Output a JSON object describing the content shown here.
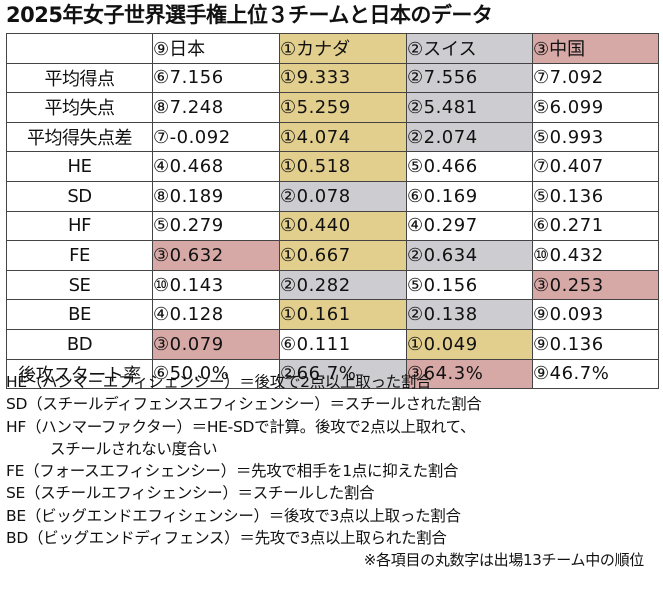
{
  "title": "2025年女子世界選手権上位３チームと日本のデータ",
  "colors": {
    "gold": "#e2cf8e",
    "silver": "#cdcdd1",
    "bronze": "#d7a9a6",
    "white": "#ffffff"
  },
  "columns": [
    "⑨日本",
    "①カナダ",
    "②スイス",
    "③中国"
  ],
  "header_colors": [
    "white",
    "gold",
    "silver",
    "bronze"
  ],
  "rows": [
    {
      "label": "平均得点",
      "cells": [
        {
          "text": "⑥7.156",
          "color": "white"
        },
        {
          "text": "①9.333",
          "color": "gold"
        },
        {
          "text": "②7.556",
          "color": "silver"
        },
        {
          "text": "⑦7.092",
          "color": "white"
        }
      ]
    },
    {
      "label": "平均失点",
      "cells": [
        {
          "text": "⑧7.248",
          "color": "white"
        },
        {
          "text": "①5.259",
          "color": "gold"
        },
        {
          "text": "②5.481",
          "color": "silver"
        },
        {
          "text": "⑤6.099",
          "color": "white"
        }
      ]
    },
    {
      "label": "平均得失点差",
      "cells": [
        {
          "text": "⑦-0.092",
          "color": "white"
        },
        {
          "text": "①4.074",
          "color": "gold"
        },
        {
          "text": "②2.074",
          "color": "silver"
        },
        {
          "text": "⑤0.993",
          "color": "white"
        }
      ]
    },
    {
      "label": "HE",
      "cells": [
        {
          "text": "④0.468",
          "color": "white"
        },
        {
          "text": "①0.518",
          "color": "gold"
        },
        {
          "text": "⑤0.466",
          "color": "white"
        },
        {
          "text": "⑦0.407",
          "color": "white"
        }
      ]
    },
    {
      "label": "SD",
      "cells": [
        {
          "text": "⑧0.189",
          "color": "white"
        },
        {
          "text": "②0.078",
          "color": "silver"
        },
        {
          "text": "⑥0.169",
          "color": "white"
        },
        {
          "text": "⑤0.136",
          "color": "white"
        }
      ]
    },
    {
      "label": "HF",
      "cells": [
        {
          "text": "⑤0.279",
          "color": "white"
        },
        {
          "text": "①0.440",
          "color": "gold"
        },
        {
          "text": "④0.297",
          "color": "white"
        },
        {
          "text": "⑥0.271",
          "color": "white"
        }
      ]
    },
    {
      "label": "FE",
      "cells": [
        {
          "text": "③0.632",
          "color": "bronze"
        },
        {
          "text": "①0.667",
          "color": "gold"
        },
        {
          "text": "②0.634",
          "color": "silver"
        },
        {
          "text": "⑩0.432",
          "color": "white"
        }
      ]
    },
    {
      "label": "SE",
      "cells": [
        {
          "text": "⑩0.143",
          "color": "white"
        },
        {
          "text": "②0.282",
          "color": "silver"
        },
        {
          "text": "⑤0.156",
          "color": "white"
        },
        {
          "text": "③0.253",
          "color": "bronze"
        }
      ]
    },
    {
      "label": "BE",
      "cells": [
        {
          "text": "④0.128",
          "color": "white"
        },
        {
          "text": "①0.161",
          "color": "gold"
        },
        {
          "text": "②0.138",
          "color": "silver"
        },
        {
          "text": "⑨0.093",
          "color": "white"
        }
      ]
    },
    {
      "label": "BD",
      "cells": [
        {
          "text": "③0.079",
          "color": "bronze"
        },
        {
          "text": "⑥0.111",
          "color": "white"
        },
        {
          "text": "①0.049",
          "color": "gold"
        },
        {
          "text": "⑨0.136",
          "color": "white"
        }
      ]
    },
    {
      "label": "後攻スタート率",
      "cells": [
        {
          "text": "⑥50.0%",
          "color": "white"
        },
        {
          "text": "②66.7%",
          "color": "silver"
        },
        {
          "text": "③64.3%",
          "color": "bronze"
        },
        {
          "text": "⑨46.7%",
          "color": "white"
        }
      ]
    }
  ],
  "notes": [
    "HE（ハンマーエフィシェンシー）＝後攻で2点以上取った割合",
    "SD（スチールディフェンスエフィシェンシー）＝スチールされた割合",
    "HF（ハンマーファクター）＝HE-SDで計算。後攻で2点以上取れて、",
    "スチールされない度合い",
    "FE（フォースエフィシェンシー）＝先攻で相手を1点に抑えた割合",
    "SE（スチールエフィシェンシー）＝スチールした割合",
    "BE（ビッグエンドエフィシェンシー）＝後攻で3点以上取った割合",
    "BD（ビッグエンドディフェンス）＝先攻で3点以上取られた割合"
  ],
  "footnote": "※各項目の丸数字は出場13チーム中の順位"
}
